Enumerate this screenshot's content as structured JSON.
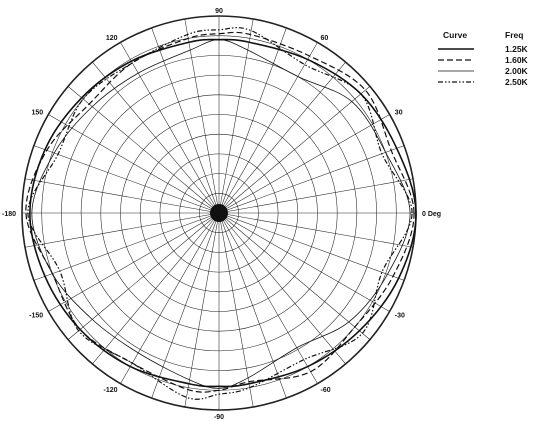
{
  "chart_data": {
    "type": "polar",
    "angle_labels": [
      {
        "angle": 90,
        "text": "90"
      },
      {
        "angle": 60,
        "text": "60"
      },
      {
        "angle": 30,
        "text": "30"
      },
      {
        "angle": 0,
        "text": "0 Deg"
      },
      {
        "angle": -30,
        "text": "-30"
      },
      {
        "angle": -60,
        "text": "-60"
      },
      {
        "angle": -90,
        "text": "-90"
      },
      {
        "angle": -120,
        "text": "-120"
      },
      {
        "angle": -150,
        "text": "-150"
      },
      {
        "angle": 180,
        "text": "-180"
      },
      {
        "angle": 150,
        "text": "150"
      },
      {
        "angle": 120,
        "text": "120"
      }
    ],
    "radial_grid": {
      "rings": 10,
      "spokes_every_deg": 10
    },
    "legend": {
      "header_curve": "Curve",
      "header_freq": "Freq"
    },
    "series": [
      {
        "name": "1.25K",
        "dash": "solid",
        "stroke_width": 1.6,
        "angles": [
          0,
          20,
          40,
          60,
          80,
          90,
          100,
          120,
          140,
          160,
          180,
          200,
          220,
          240,
          260,
          270,
          280,
          300,
          320,
          340
        ],
        "r": [
          1.0,
          0.96,
          0.94,
          0.9,
          0.88,
          0.88,
          0.88,
          0.89,
          0.91,
          0.94,
          0.96,
          0.94,
          0.92,
          0.9,
          0.88,
          0.88,
          0.88,
          0.9,
          0.93,
          0.97
        ]
      },
      {
        "name": "1.60K",
        "dash": "dashed",
        "stroke_width": 1.2,
        "angles": [
          0,
          20,
          40,
          60,
          80,
          90,
          100,
          120,
          140,
          160,
          180,
          200,
          220,
          240,
          260,
          270,
          280,
          300,
          320,
          340
        ],
        "r": [
          0.99,
          0.93,
          0.97,
          0.92,
          0.92,
          0.91,
          0.9,
          0.88,
          0.86,
          0.93,
          0.98,
          0.9,
          0.92,
          0.88,
          0.91,
          0.9,
          0.87,
          0.93,
          0.9,
          0.94
        ]
      },
      {
        "name": "2.00K",
        "dash": "thin",
        "stroke_width": 0.8,
        "angles": [
          0,
          20,
          40,
          60,
          80,
          90,
          100,
          120,
          140,
          160,
          180,
          200,
          220,
          240,
          260,
          270,
          280,
          300,
          320,
          340
        ],
        "r": [
          0.97,
          0.9,
          0.88,
          0.8,
          0.84,
          0.88,
          0.84,
          0.82,
          0.84,
          0.89,
          0.95,
          0.9,
          0.84,
          0.82,
          0.86,
          0.89,
          0.85,
          0.79,
          0.86,
          0.91
        ]
      },
      {
        "name": "2.50K",
        "dash": "dash-dot",
        "stroke_width": 1.2,
        "angles": [
          0,
          20,
          40,
          60,
          80,
          90,
          100,
          120,
          140,
          160,
          180,
          200,
          220,
          240,
          260,
          270,
          280,
          300,
          320,
          340
        ],
        "r": [
          0.98,
          0.88,
          0.94,
          0.87,
          0.94,
          0.93,
          0.92,
          0.88,
          0.9,
          0.87,
          0.97,
          0.86,
          0.93,
          0.88,
          0.95,
          0.92,
          0.9,
          0.86,
          0.95,
          0.88
        ]
      }
    ]
  }
}
